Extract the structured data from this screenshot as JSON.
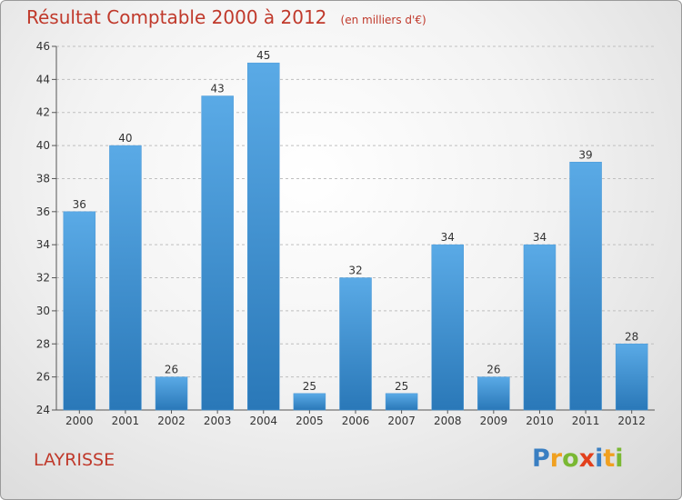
{
  "title": "Résultat Comptable 2000 à 2012",
  "subtitle": "(en milliers d'€)",
  "town": "LAYRISSE",
  "logo": "Proxiti",
  "colors": {
    "title": "#c0392b",
    "bar_top": "#5aaae6",
    "bar_bottom": "#2a78b8",
    "axis": "#555555",
    "grid": "#bfbfbf"
  },
  "chart_data": {
    "type": "bar",
    "title": "Résultat Comptable 2000 à 2012",
    "subtitle": "(en milliers d'€)",
    "categories": [
      "2000",
      "2001",
      "2002",
      "2003",
      "2004",
      "2005",
      "2006",
      "2007",
      "2008",
      "2009",
      "2010",
      "2011",
      "2012"
    ],
    "values": [
      36,
      40,
      26,
      43,
      45,
      25,
      32,
      25,
      34,
      26,
      34,
      39,
      28
    ],
    "data_labels": [
      "36",
      "40",
      "26",
      "43",
      "45",
      "25",
      "32",
      "25",
      "34",
      "26",
      "34",
      "39",
      "28"
    ],
    "yticks": [
      "24",
      "26",
      "28",
      "30",
      "32",
      "34",
      "36",
      "38",
      "40",
      "42",
      "44",
      "46"
    ],
    "ylim": [
      24,
      46
    ],
    "grid": true,
    "xlabel": "",
    "ylabel": ""
  }
}
